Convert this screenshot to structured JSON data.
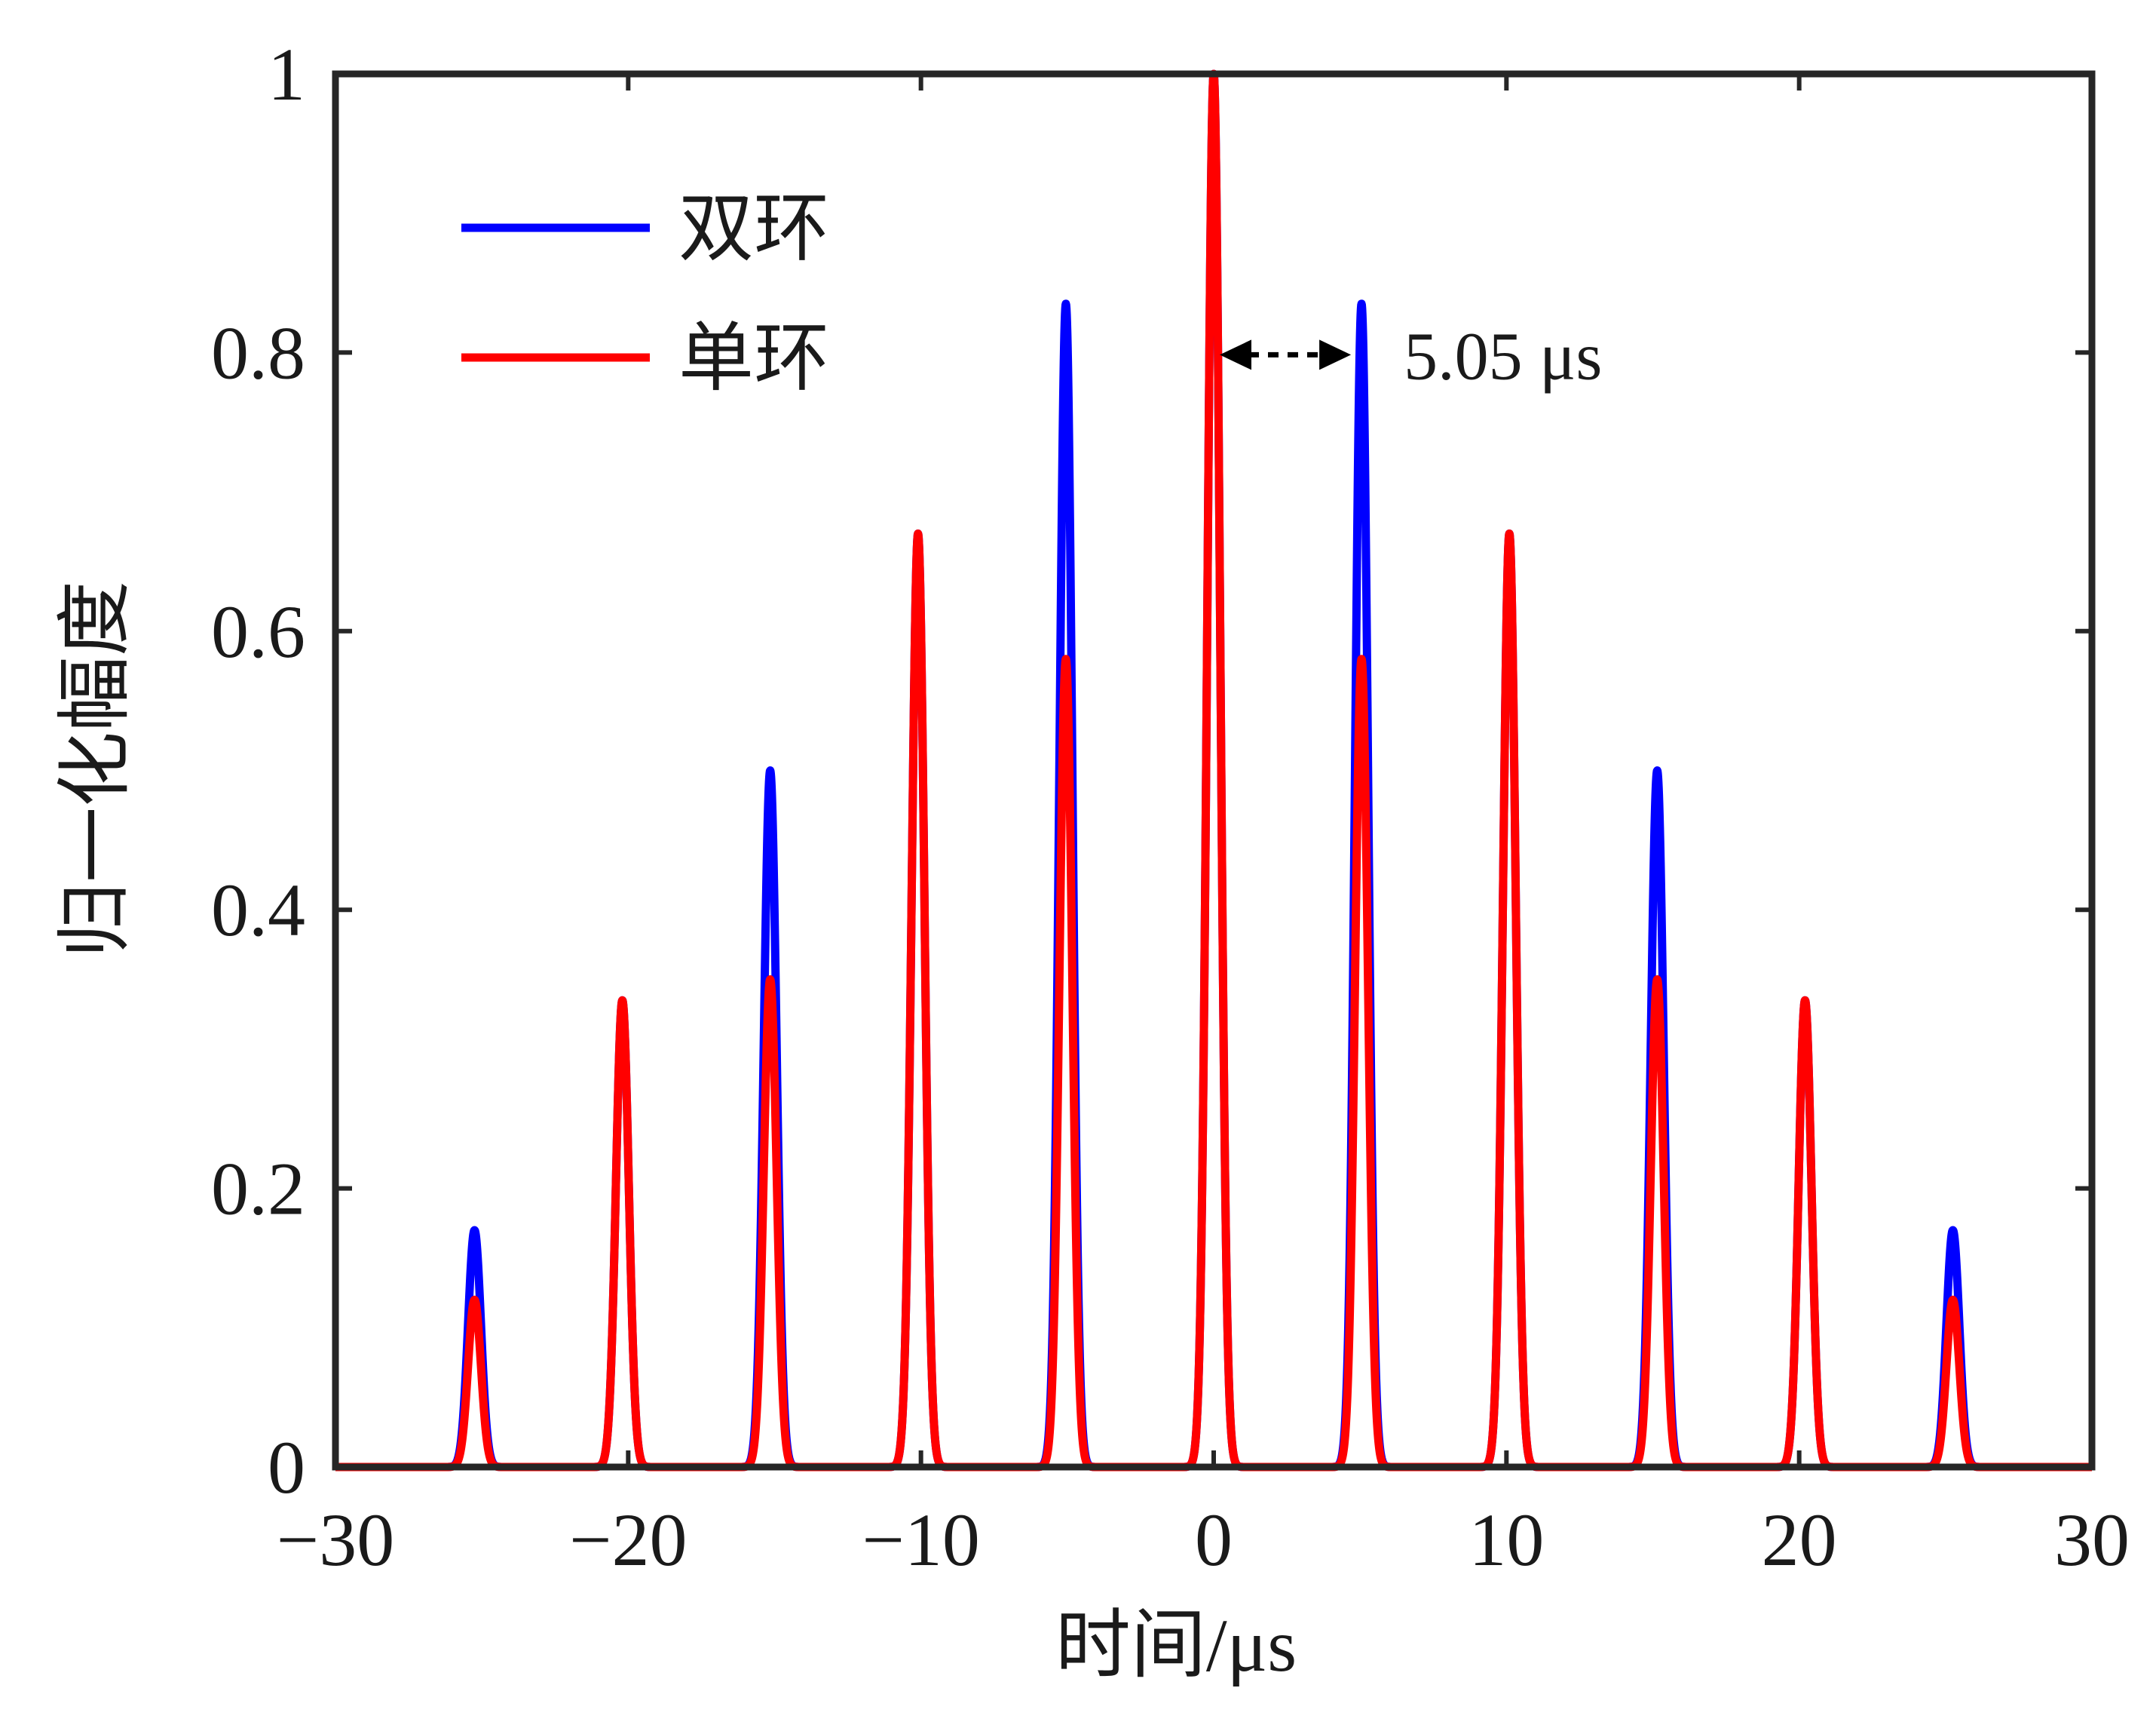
{
  "chart_data": {
    "type": "line",
    "xlabel": "时间/μs",
    "ylabel": "归一化幅度",
    "xlim": [
      -30,
      30
    ],
    "ylim": [
      0,
      1
    ],
    "xticks": [
      -30,
      -20,
      -10,
      0,
      10,
      20,
      30
    ],
    "xtick_labels": [
      "−30",
      "−20",
      "−10",
      "0",
      "10",
      "20",
      "30"
    ],
    "yticks": [
      0,
      0.2,
      0.4,
      0.6,
      0.8,
      1
    ],
    "ytick_labels": [
      "0",
      "0.2",
      "0.4",
      "0.6",
      "0.8",
      "1"
    ],
    "grid": false,
    "legend": "top-left",
    "series": [
      {
        "name": "双环",
        "color": "#0000ff",
        "peaks_x": [
          -25.25,
          -20.2,
          -15.15,
          -10.1,
          -5.05,
          0,
          5.05,
          10.1,
          15.15,
          20.2,
          25.25
        ],
        "peaks_y": [
          0.17,
          0.335,
          0.5,
          0.67,
          0.835,
          1.0,
          0.835,
          0.67,
          0.5,
          0.335,
          0.17
        ]
      },
      {
        "name": "单环",
        "color": "#ff0000",
        "peaks_x": [
          -25.25,
          -20.2,
          -15.15,
          -10.1,
          -5.05,
          0,
          5.05,
          10.1,
          15.15,
          20.2,
          25.25
        ],
        "peaks_y": [
          0.12,
          0.335,
          0.35,
          0.67,
          0.58,
          1.0,
          0.58,
          0.67,
          0.35,
          0.335,
          0.12
        ]
      }
    ],
    "annotations": [
      {
        "text": "5.05 μs",
        "from_x": 0,
        "to_x": 5.05,
        "y": 0.8
      }
    ]
  }
}
